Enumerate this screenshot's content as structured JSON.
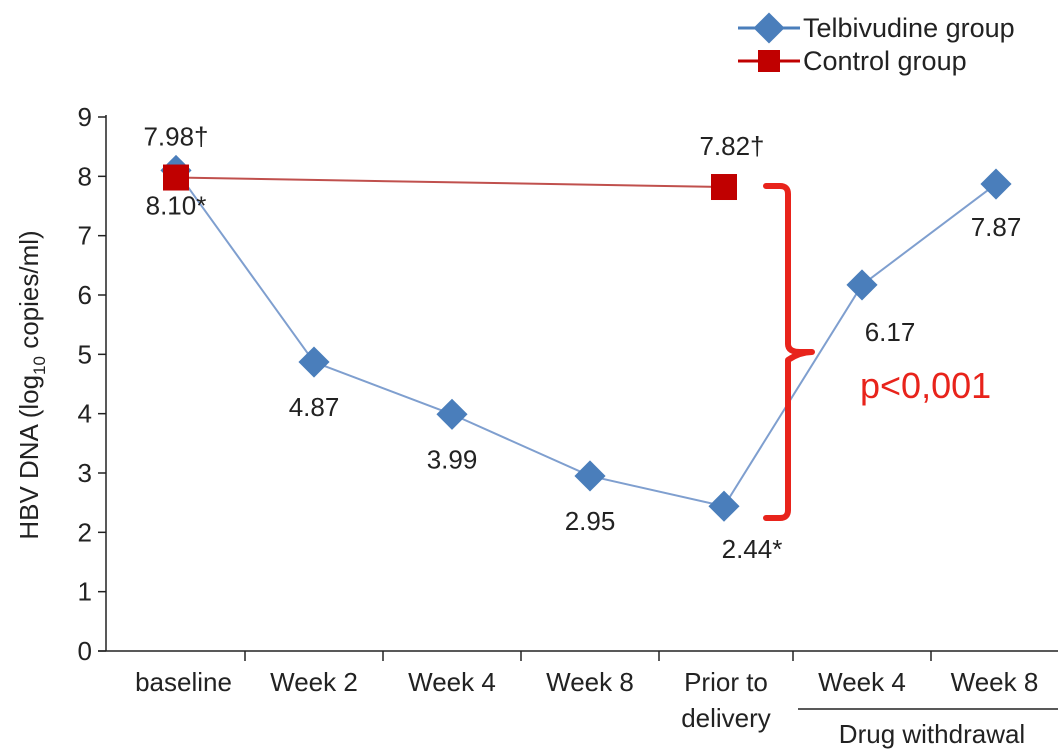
{
  "chart_data": {
    "type": "line",
    "ylabel_main": "HBV DNA (log",
    "ylabel_sub": "10",
    "ylabel_end": " copies/ml)",
    "ylim": [
      0,
      9
    ],
    "yticks": [
      "0",
      "1",
      "2",
      "3",
      "4",
      "5",
      "6",
      "7",
      "8",
      "9"
    ],
    "categories": [
      "baseline",
      "Week 2",
      "Week 4",
      "Week 8",
      "Prior to delivery",
      "Week 4",
      "Week 8"
    ],
    "category_lines": [
      [
        "baseline"
      ],
      [
        "Week 2"
      ],
      [
        "Week 4"
      ],
      [
        "Week 8"
      ],
      [
        "Prior to",
        "delivery"
      ],
      [
        "Week 4"
      ],
      [
        "Week 8"
      ]
    ],
    "group_label": "Drug withdrawal",
    "grid": false,
    "legend_position": "top-right",
    "series": [
      {
        "name": "Telbivudine group",
        "color": "#4a7ebb",
        "line_color": "#7f9fcf",
        "marker": "diamond",
        "values": [
          8.1,
          4.87,
          3.99,
          2.95,
          2.44,
          6.17,
          7.87
        ],
        "labels": [
          "8.10*",
          "4.87",
          "3.99",
          "2.95",
          "2.44*",
          "6.17",
          "7.87"
        ]
      },
      {
        "name": "Control group",
        "color": "#c00000",
        "line_color": "#c0504d",
        "marker": "square",
        "values": [
          7.98,
          null,
          null,
          null,
          7.82,
          null,
          null
        ],
        "labels": [
          "7.98†",
          "",
          "",
          "",
          "7.82†",
          "",
          ""
        ]
      }
    ],
    "annotation": {
      "text": "p<0,001",
      "color": "#e8231b"
    }
  }
}
